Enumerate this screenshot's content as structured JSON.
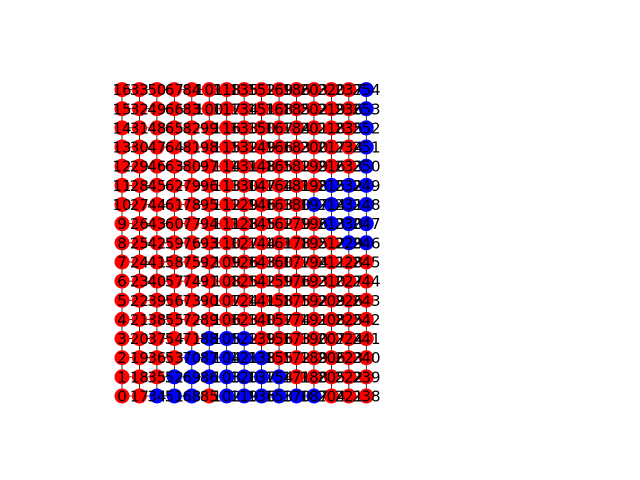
{
  "graph": {
    "rows": 17,
    "cols": 15,
    "colors": {
      "red": "#ff0000",
      "blue": "#0000ff",
      "edge": "#000000",
      "label": "#000000"
    },
    "blue_nodes": [
      34,
      51,
      52,
      68,
      69,
      70,
      86,
      87,
      88,
      102,
      103,
      104,
      105,
      119,
      120,
      121,
      122,
      136,
      137,
      138,
      153,
      154,
      170,
      187,
      197,
      213,
      214,
      215,
      229,
      230,
      231,
      232,
      246,
      247,
      248,
      249,
      250,
      251,
      252,
      253,
      254,
      255,
      256,
      264,
      265,
      266,
      271,
      272,
      273,
      274,
      275,
      276,
      288
    ]
  }
}
